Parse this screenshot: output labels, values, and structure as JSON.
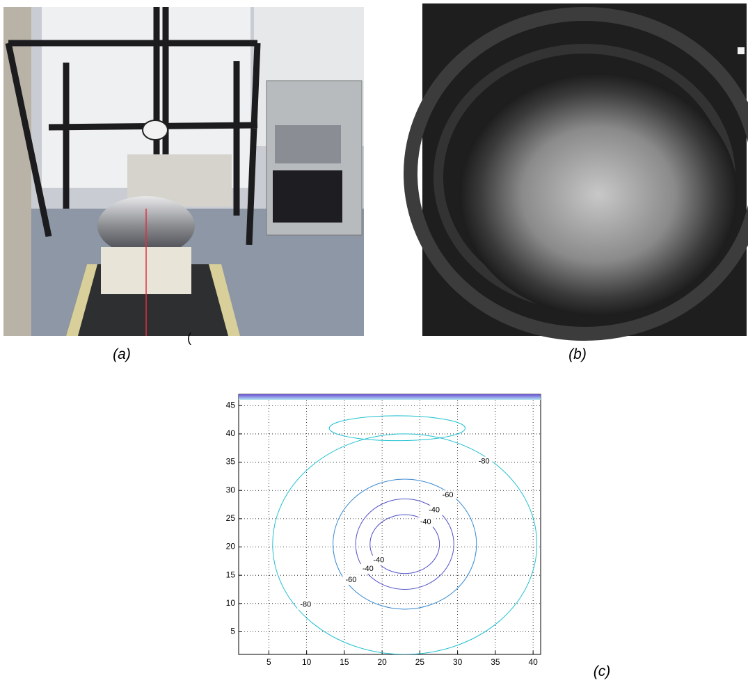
{
  "panels": [
    {
      "caption": "(a)"
    },
    {
      "caption": "(b)"
    },
    {
      "caption": "(c)"
    }
  ],
  "stray_mark": "(",
  "chart_data": {
    "type": "contour",
    "xlim": [
      1,
      41
    ],
    "ylim": [
      1,
      47
    ],
    "xticks": [
      5,
      10,
      15,
      20,
      25,
      30,
      35,
      40
    ],
    "yticks": [
      5,
      10,
      15,
      20,
      25,
      30,
      35,
      40,
      45
    ],
    "levels": [
      -80,
      -60,
      -40
    ],
    "grid": true
  }
}
